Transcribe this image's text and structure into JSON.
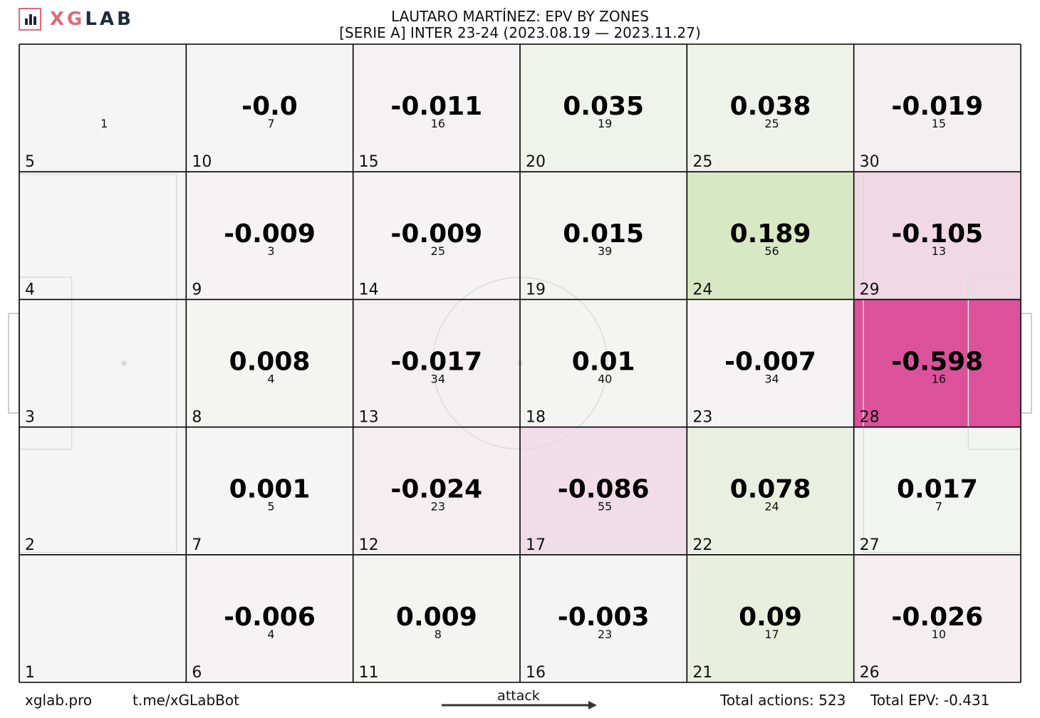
{
  "brand": {
    "logo_text_accent": "XG",
    "logo_text_main": "LAB",
    "accent_color": "#e06a7a",
    "dark_color": "#1e2a3a"
  },
  "header": {
    "title_line1": "LAUTARO MARTÍNEZ: EPV BY ZONES",
    "title_line2": "[SERIE A] INTER 23-24 (2023.08.19 — 2023.11.27)"
  },
  "footer": {
    "site": "xglab.pro",
    "bot": "t.me/xGLabBot",
    "attack_label": "attack",
    "total_actions": "Total actions: 523",
    "total_epv": "Total EPV: -0.431"
  },
  "colors": {
    "positive": "#8cc63f",
    "negative": "#d6338a",
    "neutral": "#f5f5f5",
    "grid": "#000000",
    "pitch_lines": "#dcdcdc"
  },
  "chart_data": {
    "type": "heatmap",
    "title": "LAUTARO MARTÍNEZ: EPV BY ZONES",
    "subtitle": "[SERIE A] INTER 23-24 (2023.08.19 — 2023.11.27)",
    "grid": {
      "columns": 6,
      "rows": 5
    },
    "zones": [
      {
        "zone": 1,
        "epv": null,
        "actions": null
      },
      {
        "zone": 2,
        "epv": null,
        "actions": null
      },
      {
        "zone": 3,
        "epv": null,
        "actions": null
      },
      {
        "zone": 4,
        "epv": null,
        "actions": null
      },
      {
        "zone": 5,
        "epv": null,
        "actions": 1
      },
      {
        "zone": 6,
        "epv": -0.006,
        "actions": 4
      },
      {
        "zone": 7,
        "epv": 0.001,
        "actions": 5
      },
      {
        "zone": 8,
        "epv": 0.008,
        "actions": 4
      },
      {
        "zone": 9,
        "epv": -0.009,
        "actions": 3
      },
      {
        "zone": 10,
        "epv": -0.0,
        "actions": 7
      },
      {
        "zone": 11,
        "epv": 0.009,
        "actions": 8
      },
      {
        "zone": 12,
        "epv": -0.024,
        "actions": 23
      },
      {
        "zone": 13,
        "epv": -0.017,
        "actions": 34
      },
      {
        "zone": 14,
        "epv": -0.009,
        "actions": 25
      },
      {
        "zone": 15,
        "epv": -0.011,
        "actions": 16
      },
      {
        "zone": 16,
        "epv": -0.003,
        "actions": 23
      },
      {
        "zone": 17,
        "epv": -0.086,
        "actions": 55
      },
      {
        "zone": 18,
        "epv": 0.01,
        "actions": 40
      },
      {
        "zone": 19,
        "epv": 0.015,
        "actions": 39
      },
      {
        "zone": 20,
        "epv": 0.035,
        "actions": 19
      },
      {
        "zone": 21,
        "epv": 0.09,
        "actions": 17
      },
      {
        "zone": 22,
        "epv": 0.078,
        "actions": 24
      },
      {
        "zone": 23,
        "epv": -0.007,
        "actions": 34
      },
      {
        "zone": 24,
        "epv": 0.189,
        "actions": 56
      },
      {
        "zone": 25,
        "epv": 0.038,
        "actions": 25
      },
      {
        "zone": 26,
        "epv": -0.026,
        "actions": 10
      },
      {
        "zone": 27,
        "epv": 0.017,
        "actions": 7
      },
      {
        "zone": 28,
        "epv": -0.598,
        "actions": 16
      },
      {
        "zone": 29,
        "epv": -0.105,
        "actions": 13
      },
      {
        "zone": 30,
        "epv": -0.019,
        "actions": 15
      }
    ],
    "epv_labels": {
      "6": "-0.006",
      "7": "0.001",
      "8": "0.008",
      "9": "-0.009",
      "10": "-0.0",
      "11": "0.009",
      "12": "-0.024",
      "13": "-0.017",
      "14": "-0.009",
      "15": "-0.011",
      "16": "-0.003",
      "17": "-0.086",
      "18": "0.01",
      "19": "0.015",
      "20": "0.035",
      "21": "0.09",
      "22": "0.078",
      "23": "-0.007",
      "24": "0.189",
      "25": "0.038",
      "26": "-0.026",
      "27": "0.017",
      "28": "-0.598",
      "29": "-0.105",
      "30": "-0.019"
    },
    "total_actions": 523,
    "total_epv": -0.431
  }
}
